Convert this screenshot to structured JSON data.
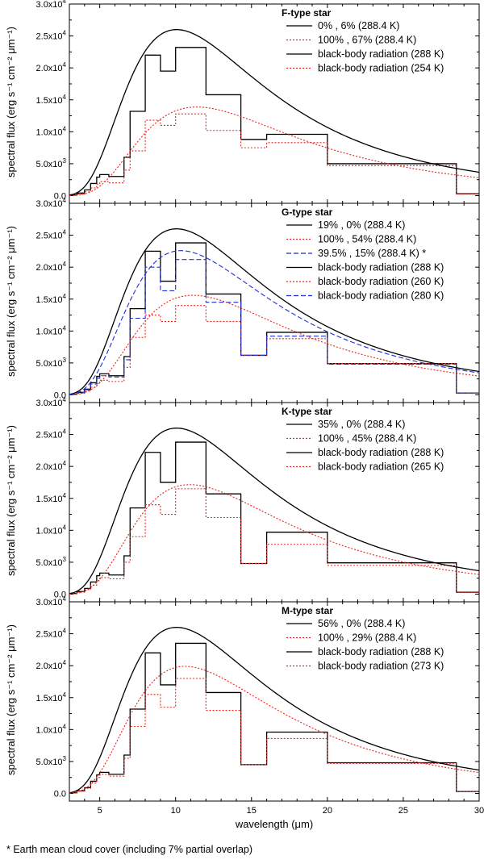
{
  "footnote": "* Earth mean cloud cover (including 7% partial overlap)",
  "chart_data": [
    {
      "type": "line",
      "title": "F-type star",
      "xlabel": "wavelength (μm)",
      "ylabel": "spectral flux (erg s⁻¹ cm⁻² μm⁻¹)",
      "xlim": [
        3,
        30
      ],
      "ylim": [
        -1200,
        30000
      ],
      "xticks": [
        5,
        10,
        15,
        20,
        25,
        30
      ],
      "yticks": [
        0,
        5000,
        10000,
        15000,
        20000,
        25000,
        30000
      ],
      "ytick_labels": [
        [
          "0.0",
          ""
        ],
        [
          "5.0x10",
          "3"
        ],
        [
          "1.0x10",
          "4"
        ],
        [
          "1.5x10",
          "4"
        ],
        [
          "2.0x10",
          "4"
        ],
        [
          "2.5x10",
          "4"
        ],
        [
          "3.0x10",
          "4"
        ]
      ],
      "series": [
        {
          "name": "0% , 6% (288.4 K)",
          "style": "solid",
          "color": "#000000",
          "edges": [
            3,
            3.5,
            4,
            4.4,
            4.8,
            5,
            5.6,
            6.6,
            7,
            8,
            9,
            10,
            12,
            14.3,
            16,
            20,
            28.5,
            30
          ],
          "values": [
            100,
            400,
            900,
            1900,
            2900,
            3300,
            3000,
            6000,
            13200,
            22000,
            19500,
            23200,
            15800,
            8800,
            9600,
            5000,
            300
          ]
        },
        {
          "name": "100% , 67% (288.4 K)",
          "style": "dotted",
          "color": "#e8241c",
          "edges": [
            3,
            3.5,
            4,
            4.4,
            4.8,
            5,
            5.6,
            6.6,
            7,
            8,
            9,
            10,
            12,
            14.3,
            16,
            20,
            28.5,
            30
          ],
          "values": [
            50,
            250,
            600,
            1200,
            1800,
            2200,
            2000,
            4000,
            7000,
            11800,
            11000,
            12800,
            10200,
            7500,
            8300,
            4700,
            250
          ]
        },
        {
          "name": "black-body radiation (288 K)",
          "style": "solid",
          "color": "#000000",
          "temperature": 288
        },
        {
          "name": "black-body radiation (254 K)",
          "style": "dotted",
          "color": "#e8241c",
          "temperature": 254
        }
      ]
    },
    {
      "type": "line",
      "title": "G-type star",
      "xlabel": "wavelength (μm)",
      "ylabel": "spectral flux (erg s⁻¹ cm⁻² μm⁻¹)",
      "xlim": [
        3,
        30
      ],
      "ylim": [
        -1200,
        30000
      ],
      "xticks": [
        5,
        10,
        15,
        20,
        25,
        30
      ],
      "yticks": [
        0,
        5000,
        10000,
        15000,
        20000,
        25000,
        30000
      ],
      "ytick_labels": [
        [
          "0.0",
          ""
        ],
        [
          "5.0x10",
          "3"
        ],
        [
          "1.0x10",
          "4"
        ],
        [
          "1.5x10",
          "4"
        ],
        [
          "2.0x10",
          "4"
        ],
        [
          "2.5x10",
          "4"
        ],
        [
          "3.0x10",
          "4"
        ]
      ],
      "series": [
        {
          "name": "19% , 0% (288.4 K)",
          "style": "solid",
          "color": "#000000",
          "edges": [
            3,
            3.5,
            4,
            4.4,
            4.8,
            5,
            5.6,
            6.6,
            7,
            8,
            9,
            10,
            12,
            14.3,
            16,
            20,
            28.5,
            30
          ],
          "values": [
            100,
            400,
            900,
            1900,
            2900,
            3300,
            3000,
            6000,
            13500,
            22500,
            17800,
            23800,
            15800,
            6200,
            9800,
            4900,
            300
          ]
        },
        {
          "name": "100% , 54% (288.4 K)",
          "style": "dotted",
          "color": "#e8241c",
          "edges": [
            3,
            3.5,
            4,
            4.4,
            4.8,
            5,
            5.6,
            6.6,
            7,
            8,
            9,
            10,
            12,
            14.3,
            16,
            20,
            28.5,
            30
          ],
          "values": [
            50,
            250,
            600,
            1200,
            1800,
            2300,
            2100,
            4300,
            9000,
            12500,
            11500,
            14000,
            11500,
            6200,
            8800,
            4900,
            280
          ]
        },
        {
          "name": "39.5% , 15% (288.4 K) *",
          "style": "dashed",
          "color": "#1f2fd8",
          "edges": [
            3,
            3.5,
            4,
            4.4,
            4.8,
            5,
            5.6,
            6.6,
            7,
            8,
            9,
            10,
            12,
            14.3,
            16,
            20,
            28.5,
            30
          ],
          "values": [
            80,
            350,
            800,
            1700,
            2600,
            3000,
            2800,
            5500,
            12000,
            20000,
            16300,
            21200,
            14500,
            6200,
            9200,
            4800,
            290
          ]
        },
        {
          "name": "black-body radiation (288 K)",
          "style": "solid",
          "color": "#000000",
          "temperature": 288
        },
        {
          "name": "black-body radiation (260 K)",
          "style": "dotted",
          "color": "#e8241c",
          "temperature": 260
        },
        {
          "name": "black-body radiation (280 K)",
          "style": "dashed",
          "color": "#1f2fd8",
          "temperature": 280
        }
      ]
    },
    {
      "type": "line",
      "title": "K-type star",
      "xlabel": "wavelength (μm)",
      "ylabel": "spectral flux (erg s⁻¹ cm⁻² μm⁻¹)",
      "xlim": [
        3,
        30
      ],
      "ylim": [
        -1200,
        30000
      ],
      "xticks": [
        5,
        10,
        15,
        20,
        25,
        30
      ],
      "yticks": [
        0,
        5000,
        10000,
        15000,
        20000,
        25000,
        30000
      ],
      "ytick_labels": [
        [
          "0.0",
          ""
        ],
        [
          "5.0x10",
          "3"
        ],
        [
          "1.0x10",
          "4"
        ],
        [
          "1.5x10",
          "4"
        ],
        [
          "2.0x10",
          "4"
        ],
        [
          "2.5x10",
          "4"
        ],
        [
          "3.0x10",
          "4"
        ]
      ],
      "series": [
        {
          "name": "35% , 0% (288.4 K)",
          "style": "solid",
          "color": "#000000",
          "edges": [
            3,
            3.5,
            4,
            4.4,
            4.8,
            5,
            5.6,
            6.6,
            7,
            8,
            9,
            10,
            12,
            14.3,
            16,
            20,
            28.5,
            30
          ],
          "values": [
            100,
            400,
            900,
            1900,
            2900,
            3300,
            3000,
            6000,
            13500,
            22200,
            17500,
            23800,
            15700,
            4800,
            9700,
            4900,
            300
          ]
        },
        {
          "name": "100% , 45% (288.4 K)",
          "style": "dotted",
          "color": "#e8241c",
          "edges": [
            3,
            3.5,
            4,
            4.4,
            4.8,
            5,
            5.6,
            6.6,
            7,
            8,
            9,
            10,
            12,
            14.3,
            16,
            20,
            28.5,
            30
          ],
          "values": [
            60,
            300,
            700,
            1400,
            2100,
            2600,
            2400,
            5000,
            9000,
            14000,
            12500,
            16500,
            12000,
            4800,
            7800,
            4500,
            260
          ]
        },
        {
          "name": "black-body radiation (288 K)",
          "style": "solid",
          "color": "#000000",
          "temperature": 288
        },
        {
          "name": "black-body radiation (265 K)",
          "style": "dotted",
          "color": "#e8241c",
          "temperature": 265
        }
      ]
    },
    {
      "type": "line",
      "title": "M-type star",
      "xlabel": "wavelength (μm)",
      "ylabel": "spectral flux (erg s⁻¹ cm⁻² μm⁻¹)",
      "xlim": [
        3,
        30
      ],
      "ylim": [
        -1200,
        30000
      ],
      "xticks": [
        5,
        10,
        15,
        20,
        25,
        30
      ],
      "xtick_labels": [
        "5",
        "10",
        "15",
        "20",
        "25",
        "30"
      ],
      "yticks": [
        0,
        5000,
        10000,
        15000,
        20000,
        25000,
        30000
      ],
      "ytick_labels": [
        [
          "0.0",
          ""
        ],
        [
          "5.0x10",
          "3"
        ],
        [
          "1.0x10",
          "4"
        ],
        [
          "1.5x10",
          "4"
        ],
        [
          "2.0x10",
          "4"
        ],
        [
          "2.5x10",
          "4"
        ],
        [
          "3.0x10",
          "4"
        ]
      ],
      "series": [
        {
          "name": "56% , 0% (288.4 K)",
          "style": "solid",
          "color": "#000000",
          "edges": [
            3,
            3.5,
            4,
            4.4,
            4.8,
            5,
            5.6,
            6.6,
            7,
            8,
            9,
            10,
            12,
            14.3,
            16,
            20,
            28.5,
            30
          ],
          "values": [
            100,
            400,
            900,
            1900,
            2900,
            3300,
            3000,
            6000,
            13200,
            22000,
            17000,
            23500,
            15800,
            4500,
            9600,
            4800,
            300
          ]
        },
        {
          "name": "100% , 29% (288.4 K)",
          "style": "dotted",
          "color": "#e8241c",
          "edges": [
            3,
            3.5,
            4,
            4.4,
            4.8,
            5,
            5.6,
            6.6,
            7,
            8,
            9,
            10,
            12,
            14.3,
            16,
            20,
            28.5,
            30
          ],
          "values": [
            80,
            350,
            800,
            1600,
            2500,
            3000,
            2700,
            5500,
            10500,
            15500,
            13500,
            18000,
            13000,
            4500,
            8600,
            4700,
            280
          ]
        },
        {
          "name": "black-body radiation (288 K)",
          "style": "solid",
          "color": "#000000",
          "temperature": 288
        },
        {
          "name": "black-body radiation (273 K)",
          "style": "dotted",
          "color": "#e8241c",
          "temperature": 273
        }
      ]
    }
  ]
}
